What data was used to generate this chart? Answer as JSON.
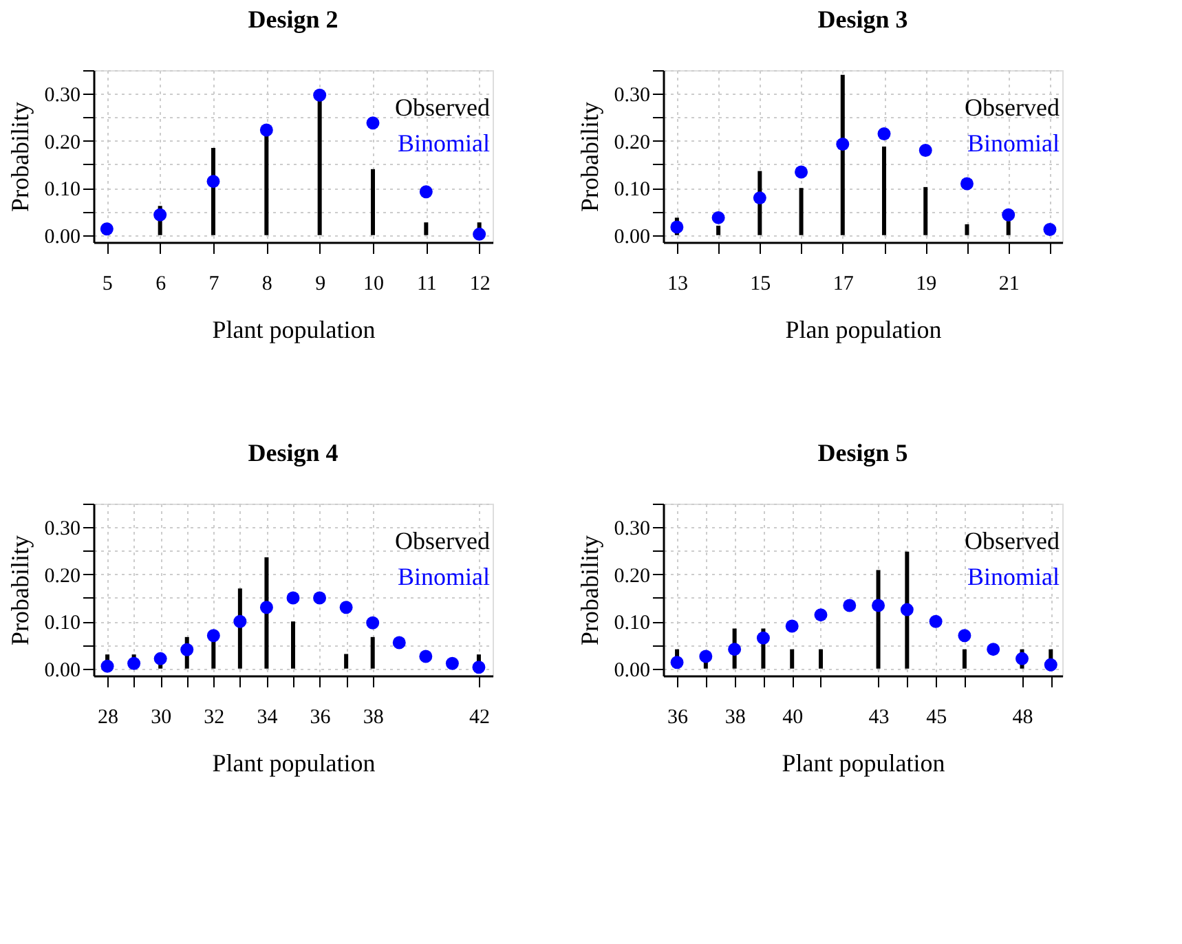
{
  "chart_data": [
    {
      "type": "bar",
      "title": "Design 2",
      "xlabel": "Plant population",
      "ylabel": "Probability",
      "xlim": [
        4.75,
        12.25
      ],
      "ylim": [
        -0.015,
        0.35
      ],
      "xticks": [
        5,
        6,
        7,
        8,
        9,
        10,
        11,
        12
      ],
      "yticks": [
        {
          "value": 0,
          "label": "0.00"
        },
        {
          "value": 0.05,
          "label": null
        },
        {
          "value": 0.1,
          "label": "0.10"
        },
        {
          "value": 0.15,
          "label": null
        },
        {
          "value": 0.2,
          "label": "0.20"
        },
        {
          "value": 0.25,
          "label": null
        },
        {
          "value": 0.3,
          "label": "0.30"
        },
        {
          "value": 0.35,
          "label": null
        }
      ],
      "grid": true,
      "legend": "top right",
      "marker": "circle",
      "series": [
        {
          "name": "Observed",
          "color": "#000000",
          "x": [
            6,
            7,
            8,
            9,
            10,
            11,
            12
          ],
          "values": [
            0.062,
            0.185,
            0.21,
            0.29,
            0.14,
            0.027,
            0.027
          ]
        },
        {
          "name": "Binomial",
          "type": "scatter",
          "color": "#0000ff",
          "x": [
            5,
            6,
            7,
            8,
            9,
            10,
            11,
            12
          ],
          "values": [
            0.013,
            0.043,
            0.114,
            0.223,
            0.297,
            0.238,
            0.092,
            0.002
          ]
        }
      ]
    },
    {
      "type": "bar",
      "title": "Design 3",
      "xlabel": "Plan population",
      "ylabel": "Probability",
      "xlim": [
        12.67,
        22.3
      ],
      "ylim": [
        -0.015,
        0.35
      ],
      "xticks": [
        13,
        {
          "value": 14,
          "label": null
        },
        15,
        {
          "value": 16,
          "label": null
        },
        17,
        {
          "value": 18,
          "label": null
        },
        19,
        {
          "value": 20,
          "label": null
        },
        21,
        {
          "value": 22,
          "label": null
        }
      ],
      "yticks": [
        {
          "value": 0,
          "label": "0.00"
        },
        {
          "value": 0.05,
          "label": null
        },
        {
          "value": 0.1,
          "label": "0.10"
        },
        {
          "value": 0.15,
          "label": null
        },
        {
          "value": 0.2,
          "label": "0.20"
        },
        {
          "value": 0.25,
          "label": null
        },
        {
          "value": 0.3,
          "label": "0.30"
        },
        {
          "value": 0.35,
          "label": null
        }
      ],
      "grid": true,
      "legend": "top right",
      "marker": "circle",
      "series": [
        {
          "name": "Observed",
          "color": "#000000",
          "x": [
            13,
            14,
            15,
            16,
            17,
            18,
            19,
            20,
            21
          ],
          "values": [
            0.037,
            0.02,
            0.136,
            0.1,
            0.34,
            0.188,
            0.102,
            0.023,
            0.03
          ]
        },
        {
          "name": "Binomial",
          "type": "scatter",
          "color": "#0000ff",
          "x": [
            13,
            14,
            15,
            16,
            17,
            18,
            19,
            20,
            21,
            22
          ],
          "values": [
            0.017,
            0.037,
            0.079,
            0.134,
            0.193,
            0.215,
            0.18,
            0.109,
            0.043,
            0.012
          ]
        }
      ]
    },
    {
      "type": "bar",
      "title": "Design 4",
      "xlabel": "Plant population",
      "ylabel": "Probability",
      "xlim": [
        27.48,
        42.52
      ],
      "ylim": [
        -0.015,
        0.35
      ],
      "xticks": [
        28,
        {
          "value": 29,
          "label": null
        },
        30,
        {
          "value": 31,
          "label": null
        },
        32,
        {
          "value": 33,
          "label": null
        },
        34,
        {
          "value": 35,
          "label": null
        },
        36,
        {
          "value": 37,
          "label": null
        },
        38,
        42
      ],
      "yticks": [
        {
          "value": 0,
          "label": "0.00"
        },
        {
          "value": 0.05,
          "label": null
        },
        {
          "value": 0.1,
          "label": "0.10"
        },
        {
          "value": 0.15,
          "label": null
        },
        {
          "value": 0.2,
          "label": "0.20"
        },
        {
          "value": 0.25,
          "label": null
        },
        {
          "value": 0.3,
          "label": "0.30"
        },
        {
          "value": 0.35,
          "label": null
        }
      ],
      "grid": true,
      "legend": "top right",
      "marker": "circle",
      "series": [
        {
          "name": "Observed",
          "color": "#000000",
          "x": [
            28,
            29,
            30,
            31,
            32,
            33,
            34,
            35,
            37,
            38,
            42
          ],
          "values": [
            0.03,
            0.03,
            0.01,
            0.067,
            0.07,
            0.17,
            0.236,
            0.1,
            0.031,
            0.067,
            0.03
          ]
        },
        {
          "name": "Binomial",
          "type": "scatter",
          "color": "#0000ff",
          "x": [
            28,
            29,
            30,
            31,
            32,
            33,
            34,
            35,
            36,
            37,
            38,
            39,
            40,
            41,
            42
          ],
          "values": [
            0.005,
            0.011,
            0.021,
            0.04,
            0.07,
            0.1,
            0.13,
            0.15,
            0.15,
            0.13,
            0.097,
            0.055,
            0.026,
            0.011,
            0.003
          ]
        }
      ]
    },
    {
      "type": "bar",
      "title": "Design 5",
      "xlabel": "Plant population",
      "ylabel": "Probability",
      "xlim": [
        35.52,
        49.4
      ],
      "ylim": [
        -0.015,
        0.35
      ],
      "xticks": [
        36,
        {
          "value": 37,
          "label": null
        },
        38,
        {
          "value": 39,
          "label": null
        },
        40,
        {
          "value": 41,
          "label": null
        },
        43,
        {
          "value": 44,
          "label": null
        },
        45,
        {
          "value": 46,
          "label": null
        },
        48,
        {
          "value": 49,
          "label": null
        }
      ],
      "yticks": [
        {
          "value": 0,
          "label": "0.00"
        },
        {
          "value": 0.05,
          "label": null
        },
        {
          "value": 0.1,
          "label": "0.10"
        },
        {
          "value": 0.15,
          "label": null
        },
        {
          "value": 0.2,
          "label": "0.20"
        },
        {
          "value": 0.25,
          "label": null
        },
        {
          "value": 0.3,
          "label": "0.30"
        },
        {
          "value": 0.35,
          "label": null
        }
      ],
      "grid": true,
      "legend": "top right",
      "marker": "circle",
      "series": [
        {
          "name": "Observed",
          "color": "#000000",
          "x": [
            36,
            37,
            38,
            39,
            40,
            41,
            43,
            44,
            46,
            48,
            49
          ],
          "values": [
            0.041,
            0.02,
            0.085,
            0.085,
            0.041,
            0.041,
            0.209,
            0.248,
            0.041,
            0.041,
            0.041
          ]
        },
        {
          "name": "Binomial",
          "type": "scatter",
          "color": "#0000ff",
          "x": [
            36,
            37,
            38,
            39,
            40,
            41,
            42,
            43,
            44,
            45,
            46,
            47,
            48,
            49
          ],
          "values": [
            0.013,
            0.026,
            0.041,
            0.065,
            0.09,
            0.114,
            0.134,
            0.134,
            0.125,
            0.1,
            0.07,
            0.041,
            0.021,
            0.008
          ]
        }
      ]
    }
  ]
}
